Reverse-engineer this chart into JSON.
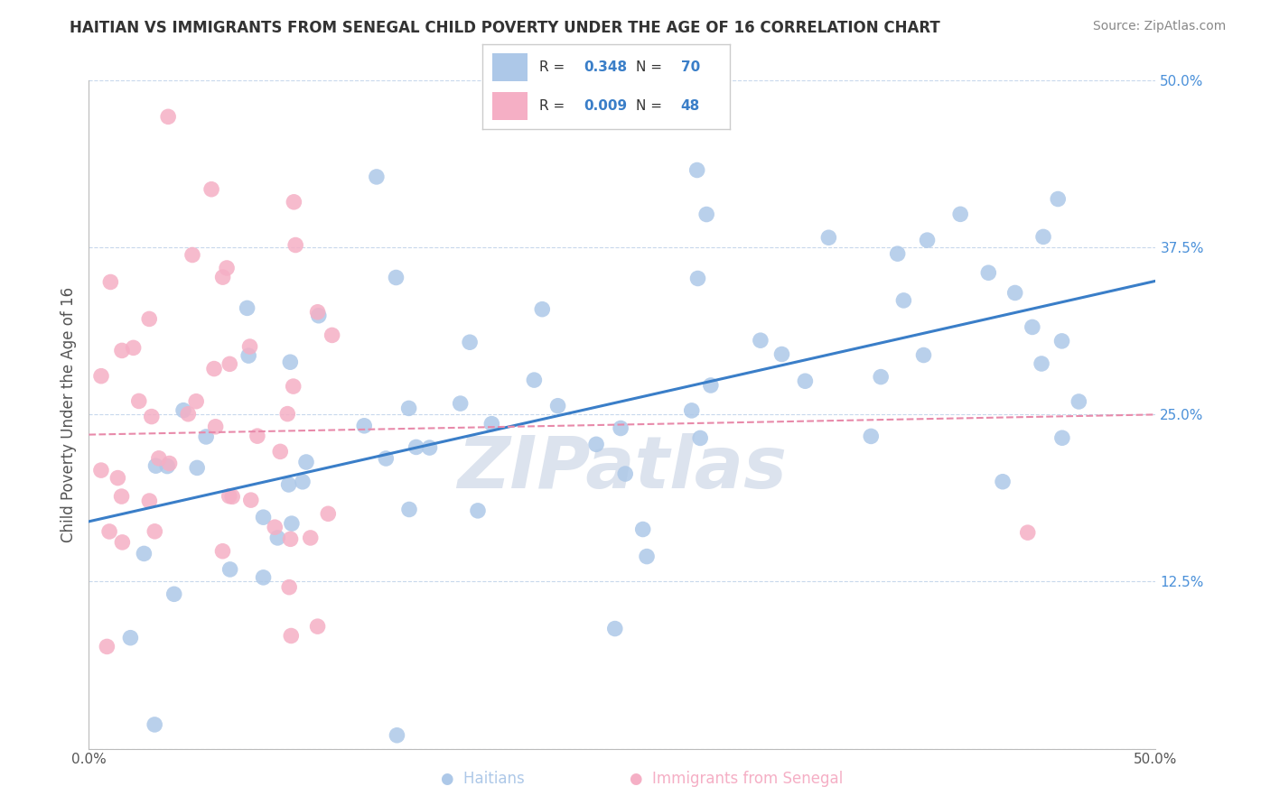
{
  "title": "HAITIAN VS IMMIGRANTS FROM SENEGAL CHILD POVERTY UNDER THE AGE OF 16 CORRELATION CHART",
  "source": "Source: ZipAtlas.com",
  "ylabel": "Child Poverty Under the Age of 16",
  "xlim": [
    0,
    0.5
  ],
  "ylim": [
    0,
    0.5
  ],
  "haitian_R": 0.348,
  "haitian_N": 70,
  "senegal_R": 0.009,
  "senegal_N": 48,
  "haitian_color": "#adc8e8",
  "senegal_color": "#f5afc5",
  "haitian_line_color": "#3a7ec8",
  "senegal_line_color": "#e88aaa",
  "watermark": "ZIPatlas",
  "haitian_line_x0": 0.0,
  "haitian_line_y0": 0.17,
  "haitian_line_x1": 0.5,
  "haitian_line_y1": 0.35,
  "senegal_line_x0": 0.0,
  "senegal_line_y0": 0.235,
  "senegal_line_x1": 0.5,
  "senegal_line_y1": 0.25,
  "haitian_seed": 42,
  "senegal_seed": 99
}
